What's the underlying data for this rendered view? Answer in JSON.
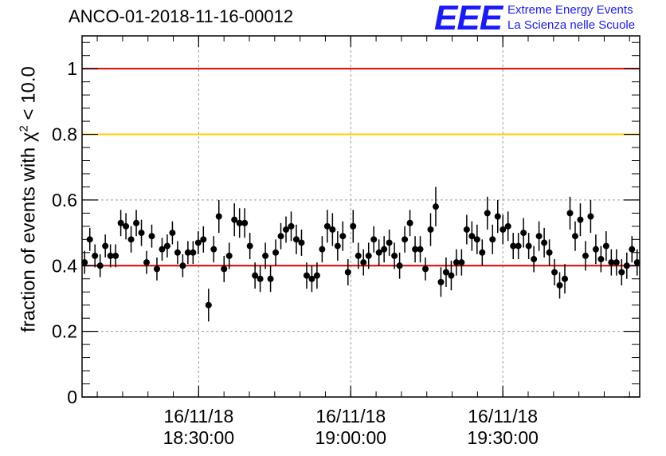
{
  "header": {
    "run_id": "ANCO-01-2018-11-16-00012",
    "logo_letters": "EEE",
    "logo_line1": "Extreme Energy Events",
    "logo_line2": "La Scienza nelle Scuole"
  },
  "colors": {
    "upper_line": "#dd0000",
    "reference_line": "#ffcc00",
    "lower_line": "#dd0000",
    "points": "#000000",
    "logo": "#1a1aff"
  },
  "chart_data": {
    "type": "scatter",
    "title": "ANCO-01-2018-11-16-00012",
    "ylabel_prefix": "fraction of events with ",
    "ylabel_symbol": "χ",
    "ylabel_sup": "2",
    "ylabel_suffix": " < 10.0",
    "ylim": [
      0,
      1.1
    ],
    "xlim": [
      "18:07:00",
      "19:57:00"
    ],
    "grid": true,
    "y_ticks": [
      0,
      0.2,
      0.4,
      0.6,
      0.8,
      1
    ],
    "y_tick_labels": [
      "0",
      "0.2",
      "0.4",
      "0.6",
      "0.8",
      "1"
    ],
    "x_ticks": [
      {
        "time": "18:30:00",
        "date_label": "16/11/18",
        "time_label": "18:30:00"
      },
      {
        "time": "19:00:00",
        "date_label": "16/11/18",
        "time_label": "19:00:00"
      },
      {
        "time": "19:30:00",
        "date_label": "16/11/18",
        "time_label": "19:30:00"
      }
    ],
    "reference_lines": [
      {
        "y": 1.0,
        "color": "#dd0000"
      },
      {
        "y": 0.8,
        "color": "#ffcc00"
      },
      {
        "y": 0.4,
        "color": "#dd0000"
      }
    ],
    "series": [
      {
        "y": [
          0.41,
          0.48,
          0.43,
          0.4,
          0.46,
          0.43,
          0.43,
          0.53,
          0.52,
          0.48,
          0.53,
          0.5,
          0.41,
          0.49,
          0.39,
          0.45,
          0.46,
          0.5,
          0.44,
          0.4,
          0.44,
          0.44,
          0.47,
          0.48,
          0.28,
          0.45,
          0.55,
          0.39,
          0.43,
          0.54,
          0.53,
          0.53,
          0.46,
          0.37,
          0.36,
          0.43,
          0.36,
          0.44,
          0.49,
          0.51,
          0.52,
          0.48,
          0.47,
          0.37,
          0.36,
          0.37,
          0.45,
          0.52,
          0.51,
          0.46,
          0.49,
          0.38,
          0.52,
          0.43,
          0.41,
          0.43,
          0.48,
          0.44,
          0.45,
          0.47,
          0.43,
          0.4,
          0.48,
          0.53,
          0.45,
          0.45,
          0.39,
          0.51,
          0.58,
          0.35,
          0.38,
          0.37,
          0.41,
          0.41,
          0.51,
          0.49,
          0.48,
          0.44,
          0.56,
          0.48,
          0.55,
          0.51,
          0.52,
          0.46,
          0.46,
          0.5,
          0.46,
          0.42,
          0.49,
          0.47,
          0.44,
          0.38,
          0.34,
          0.36,
          0.56,
          0.49,
          0.54,
          0.43,
          0.55,
          0.45,
          0.42,
          0.46,
          0.41,
          0.41,
          0.38,
          0.4,
          0.45,
          0.41
        ],
        "err": [
          0.035,
          0.035,
          0.035,
          0.035,
          0.035,
          0.035,
          0.035,
          0.04,
          0.04,
          0.04,
          0.04,
          0.04,
          0.035,
          0.035,
          0.035,
          0.035,
          0.035,
          0.035,
          0.035,
          0.035,
          0.035,
          0.035,
          0.035,
          0.04,
          0.05,
          0.04,
          0.05,
          0.04,
          0.04,
          0.05,
          0.045,
          0.045,
          0.04,
          0.04,
          0.04,
          0.04,
          0.04,
          0.04,
          0.04,
          0.04,
          0.045,
          0.045,
          0.04,
          0.04,
          0.04,
          0.04,
          0.04,
          0.05,
          0.05,
          0.045,
          0.045,
          0.04,
          0.05,
          0.04,
          0.04,
          0.04,
          0.04,
          0.04,
          0.04,
          0.04,
          0.04,
          0.04,
          0.04,
          0.04,
          0.04,
          0.04,
          0.035,
          0.05,
          0.06,
          0.045,
          0.045,
          0.045,
          0.04,
          0.04,
          0.045,
          0.045,
          0.045,
          0.04,
          0.05,
          0.045,
          0.05,
          0.045,
          0.045,
          0.04,
          0.04,
          0.045,
          0.04,
          0.04,
          0.045,
          0.045,
          0.04,
          0.04,
          0.04,
          0.045,
          0.05,
          0.045,
          0.05,
          0.045,
          0.05,
          0.045,
          0.04,
          0.045,
          0.04,
          0.04,
          0.04,
          0.04,
          0.04,
          0.04
        ]
      }
    ]
  }
}
